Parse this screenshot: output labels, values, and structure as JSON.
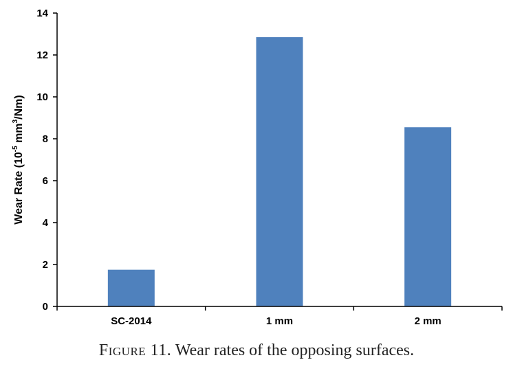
{
  "chart_data": {
    "type": "bar",
    "categories": [
      "SC-2014",
      "1 mm",
      "2 mm"
    ],
    "series": [
      {
        "values": [
          1.75,
          12.85,
          8.55
        ],
        "color": "#4f81bd"
      }
    ],
    "ylabel_parts": {
      "prefix": "Wear Rate (10",
      "sup1": "-5",
      "middle": " mm",
      "sup2": "3",
      "suffix": "/Nm)"
    },
    "ylim": [
      0,
      14
    ],
    "yticks": [
      0,
      2,
      4,
      6,
      8,
      10,
      12,
      14
    ],
    "grid": false,
    "legend": "none"
  },
  "caption": {
    "label": "Figure 11.",
    "text": " Wear rates of the opposing surfaces."
  }
}
